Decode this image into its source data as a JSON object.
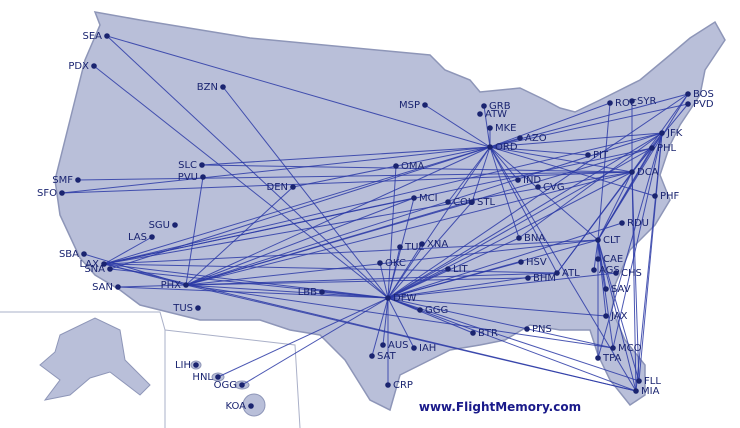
{
  "airports": [
    "SEA",
    "PDX",
    "BZN",
    "MSP",
    "GRB",
    "ATW",
    "MKE",
    "AZO",
    "ORD",
    "ROC",
    "SYR",
    "BOS",
    "PVD",
    "JFK",
    "PHL",
    "PIT",
    "SLC",
    "PVU",
    "OMA",
    "DEN",
    "SMF",
    "SFO",
    "IND",
    "CVG",
    "DCA",
    "PHF",
    "MCI",
    "COU",
    "STL",
    "SGU",
    "LAS",
    "RDU",
    "TUL",
    "XNA",
    "BNA",
    "CLT",
    "SBA",
    "LAX",
    "SNA",
    "SAN",
    "PHX",
    "OKC",
    "LIT",
    "HSV",
    "BHM",
    "ATL",
    "CAE",
    "AGS",
    "CHS",
    "SAV",
    "LBB",
    "DFW",
    "GGG",
    "TUS",
    "JAX",
    "BTR",
    "PNS",
    "AUS",
    "SAT",
    "IAH",
    "MCO",
    "TPA",
    "FLL",
    "MIA",
    "CRP",
    "LIH",
    "HNL",
    "OGG",
    "KOA"
  ],
  "footer": "www.FlightMemory.com"
}
